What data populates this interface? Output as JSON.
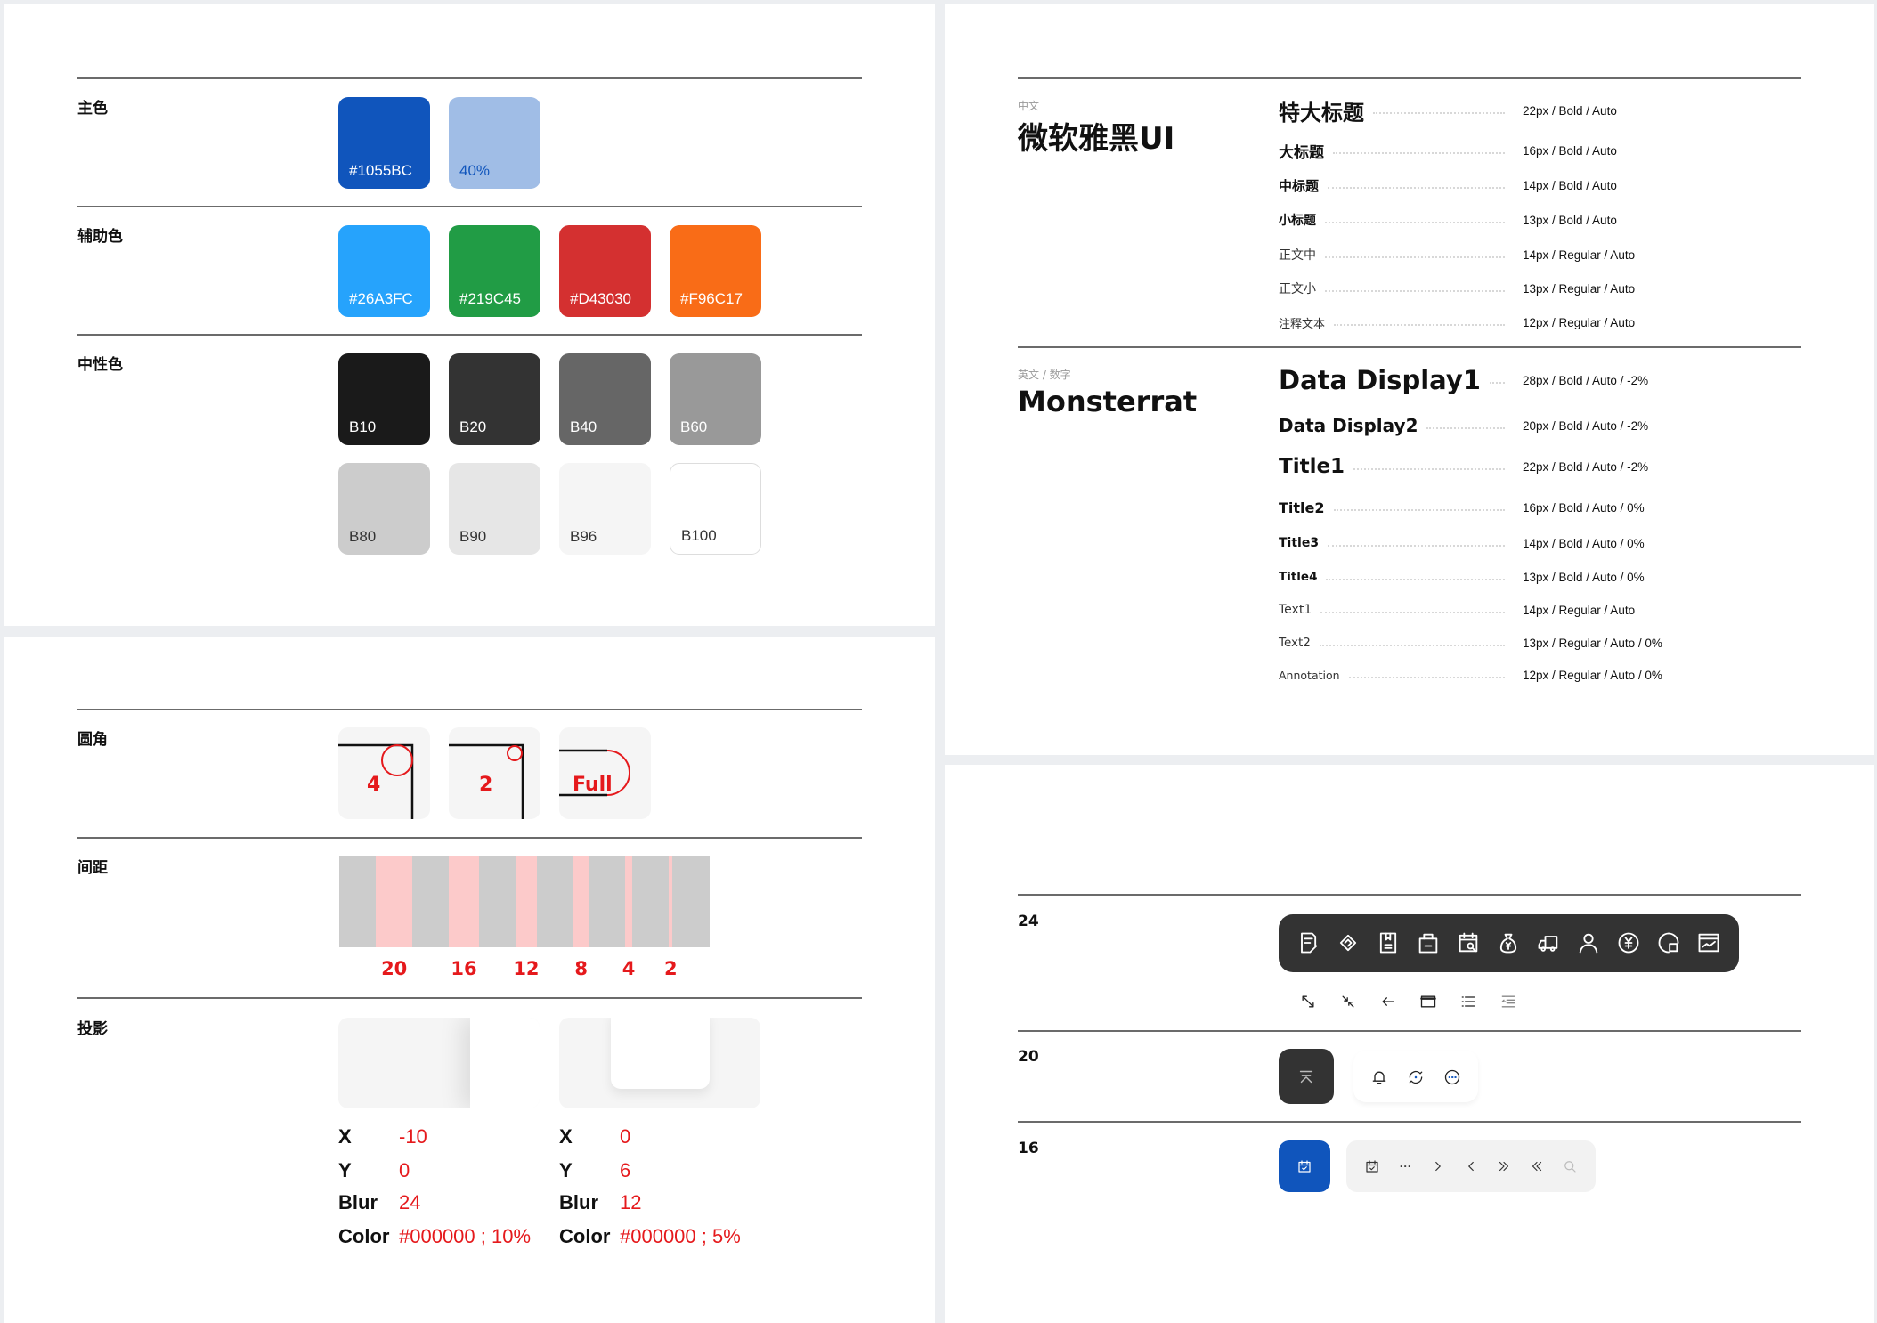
{
  "colors": {
    "primary_label": "主色",
    "primary": [
      {
        "hex": "#1055BC",
        "label": "#1055BC"
      },
      {
        "hex": "#A0BDE6",
        "label": "40%"
      }
    ],
    "secondary_label": "辅助色",
    "secondary": [
      {
        "hex": "#26A3FC",
        "label": "#26A3FC"
      },
      {
        "hex": "#219C45",
        "label": "#219C45"
      },
      {
        "hex": "#D43030",
        "label": "#D43030"
      },
      {
        "hex": "#F96C17",
        "label": "#F96C17"
      }
    ],
    "neutral_label": "中性色",
    "neutral": [
      {
        "hex": "#1A1A1A",
        "label": "B10"
      },
      {
        "hex": "#333333",
        "label": "B20"
      },
      {
        "hex": "#666666",
        "label": "B40"
      },
      {
        "hex": "#999999",
        "label": "B60"
      },
      {
        "hex": "#CCCCCC",
        "label": "B80"
      },
      {
        "hex": "#E6E6E6",
        "label": "B90"
      },
      {
        "hex": "#F5F5F5",
        "label": "B96"
      },
      {
        "hex": "#FFFFFF",
        "label": "B100"
      }
    ]
  },
  "radius": {
    "label": "圆角",
    "items": [
      "4",
      "2",
      "Full"
    ]
  },
  "spacing": {
    "label": "间距",
    "values": [
      "20",
      "16",
      "12",
      "8",
      "4",
      "2"
    ]
  },
  "shadow": {
    "label": "投影",
    "items": [
      {
        "x_label": "X",
        "x": "-10",
        "y_label": "Y",
        "y": "0",
        "blur_label": "Blur",
        "blur": "24",
        "color_label": "Color",
        "color": "#000000 ; 10%"
      },
      {
        "x_label": "X",
        "x": "0",
        "y_label": "Y",
        "y": "6",
        "blur_label": "Blur",
        "blur": "12",
        "color_label": "Color",
        "color": "#000000 ; 5%"
      }
    ]
  },
  "typography": {
    "cn": {
      "tag": "中文",
      "font": "微软雅黑UI",
      "rows": [
        {
          "name": "特大标题",
          "spec": "22px / Bold / Auto"
        },
        {
          "name": "大标题",
          "spec": "16px / Bold / Auto"
        },
        {
          "name": "中标题",
          "spec": "14px / Bold / Auto"
        },
        {
          "name": "小标题",
          "spec": "13px / Bold / Auto"
        },
        {
          "name": "正文中",
          "spec": "14px / Regular / Auto"
        },
        {
          "name": "正文小",
          "spec": "13px / Regular / Auto"
        },
        {
          "name": "注释文本",
          "spec": "12px / Regular / Auto"
        }
      ]
    },
    "en": {
      "tag": "英文 / 数字",
      "font": "Monsterrat",
      "rows": [
        {
          "name": "Data Display1",
          "spec": "28px / Bold / Auto / -2%"
        },
        {
          "name": "Data Display2",
          "spec": "20px / Bold / Auto / -2%"
        },
        {
          "name": "Title1",
          "spec": "22px / Bold / Auto / -2%"
        },
        {
          "name": "Title2",
          "spec": "16px / Bold / Auto / 0%"
        },
        {
          "name": "Title3",
          "spec": "14px / Bold / Auto / 0%"
        },
        {
          "name": "Title4",
          "spec": "13px / Bold / Auto / 0%"
        },
        {
          "name": "Text1",
          "spec": "14px / Regular / Auto"
        },
        {
          "name": "Text2",
          "spec": "13px / Regular / Auto / 0%"
        },
        {
          "name": "Annotation",
          "spec": "12px / Regular / Auto / 0%"
        }
      ]
    }
  },
  "icons": {
    "size24": "24",
    "size20": "20",
    "size16": "16",
    "row24_dark": [
      "edit-document-icon",
      "handshake-icon",
      "bookmark-document-icon",
      "shopping-bag-icon",
      "calendar-search-icon",
      "money-bag-icon",
      "truck-icon",
      "user-icon",
      "yen-circle-icon",
      "pie-chart-icon",
      "chart-window-icon"
    ],
    "row24_light": [
      "expand-icon",
      "collapse-icon",
      "arrow-left-icon",
      "window-icon",
      "list-icon",
      "indent-icon"
    ],
    "row20": [
      "to-top-icon",
      "bell-icon",
      "refresh-icon",
      "more-circle-icon"
    ],
    "row16": [
      "calendar-check-icon",
      "calendar-check-icon",
      "ellipsis-icon",
      "chevron-right-icon",
      "chevron-left-icon",
      "double-chevron-right-icon",
      "double-chevron-left-icon",
      "search-icon"
    ],
    "accent": "#1055BC",
    "dark": "#333333"
  }
}
